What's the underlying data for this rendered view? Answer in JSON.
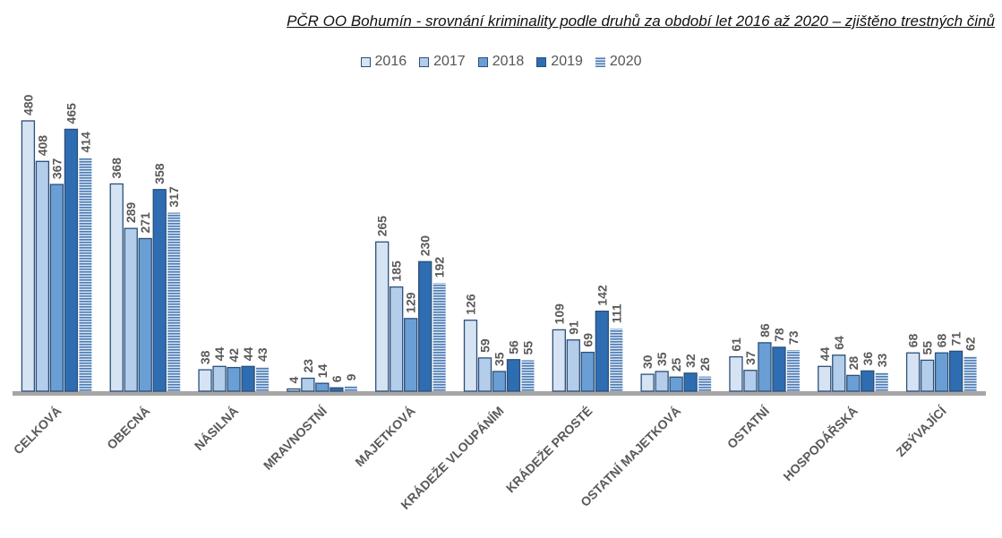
{
  "chart_data": {
    "type": "bar",
    "title": "PČR OO Bohumín - srovnání kriminality podle druhů za období let 2016 až 2020 – zjištěno trestných činů",
    "categories": [
      "CELKOVÁ",
      "OBECNÁ",
      "NÁSILNÁ",
      "MRAVNOSTNÍ",
      "MAJETKOVÁ",
      "KRÁDEŽE VLOUPÁNÍM",
      "KRÁDEŽE PROSTÉ",
      "OSTATNÍ MAJETKOVÁ",
      "OSTATNÍ",
      "HOSPODÁŘSKÁ",
      "ZBÝVAJÍCÍ"
    ],
    "series": [
      {
        "name": "2016",
        "color": "#d6e3f3",
        "values": [
          480,
          368,
          38,
          4,
          265,
          126,
          109,
          30,
          61,
          44,
          68
        ]
      },
      {
        "name": "2017",
        "color": "#b3cdea",
        "values": [
          408,
          289,
          44,
          23,
          185,
          59,
          91,
          35,
          37,
          64,
          55
        ]
      },
      {
        "name": "2018",
        "color": "#6a9fd6",
        "values": [
          367,
          271,
          42,
          14,
          129,
          35,
          69,
          25,
          86,
          28,
          68
        ]
      },
      {
        "name": "2019",
        "color": "#2e6db2",
        "values": [
          465,
          358,
          44,
          6,
          230,
          56,
          142,
          32,
          78,
          36,
          71
        ]
      },
      {
        "name": "2020",
        "color": "#4d7cb4",
        "pattern": "horizontal-stripes",
        "values": [
          414,
          317,
          43,
          9,
          192,
          55,
          111,
          26,
          73,
          33,
          62
        ]
      }
    ],
    "ylim": [
      0,
      500
    ],
    "xlabel": "",
    "ylabel": "",
    "grid": false,
    "legend_position": "top",
    "data_labels": true,
    "bar_outline_color": "#2b4f7a",
    "baseline_color": "#a6a6a6"
  }
}
